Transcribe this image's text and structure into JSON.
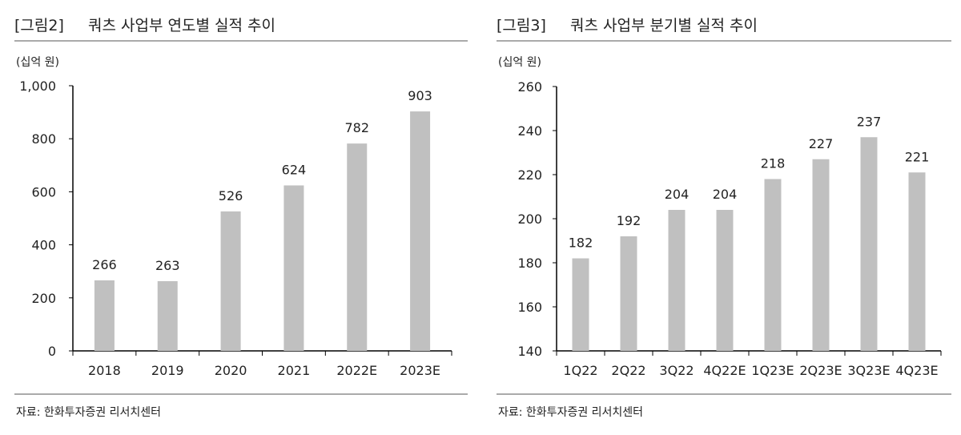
{
  "chart_data": [
    {
      "type": "bar",
      "figure_label": "[그림2]",
      "title": "쿼츠 사업부 연도별 실적 추이",
      "unit": "(십억 원)",
      "categories": [
        "2018",
        "2019",
        "2020",
        "2021",
        "2022E",
        "2023E"
      ],
      "values": [
        266,
        263,
        526,
        624,
        782,
        903
      ],
      "ylim": [
        0,
        1000
      ],
      "yticks": [
        "0",
        "200",
        "400",
        "600",
        "800",
        "1,000"
      ],
      "ytick_values": [
        0,
        200,
        400,
        600,
        800,
        1000
      ],
      "source": "자료: 한화투자증권 리서치센터",
      "grid": false,
      "bar_color": "#c0c0c0"
    },
    {
      "type": "bar",
      "figure_label": "[그림3]",
      "title": "쿼츠 사업부 분기별 실적 추이",
      "unit": "(십억 원)",
      "categories": [
        "1Q22",
        "2Q22",
        "3Q22",
        "4Q22E",
        "1Q23E",
        "2Q23E",
        "3Q23E",
        "4Q23E"
      ],
      "values": [
        182,
        192,
        204,
        204,
        218,
        227,
        237,
        221
      ],
      "ylim": [
        140,
        260
      ],
      "yticks": [
        "140",
        "160",
        "180",
        "200",
        "220",
        "240",
        "260"
      ],
      "ytick_values": [
        140,
        160,
        180,
        200,
        220,
        240,
        260
      ],
      "source": "자료: 한화투자증권 리서치센터",
      "grid": false,
      "bar_color": "#c0c0c0"
    }
  ]
}
